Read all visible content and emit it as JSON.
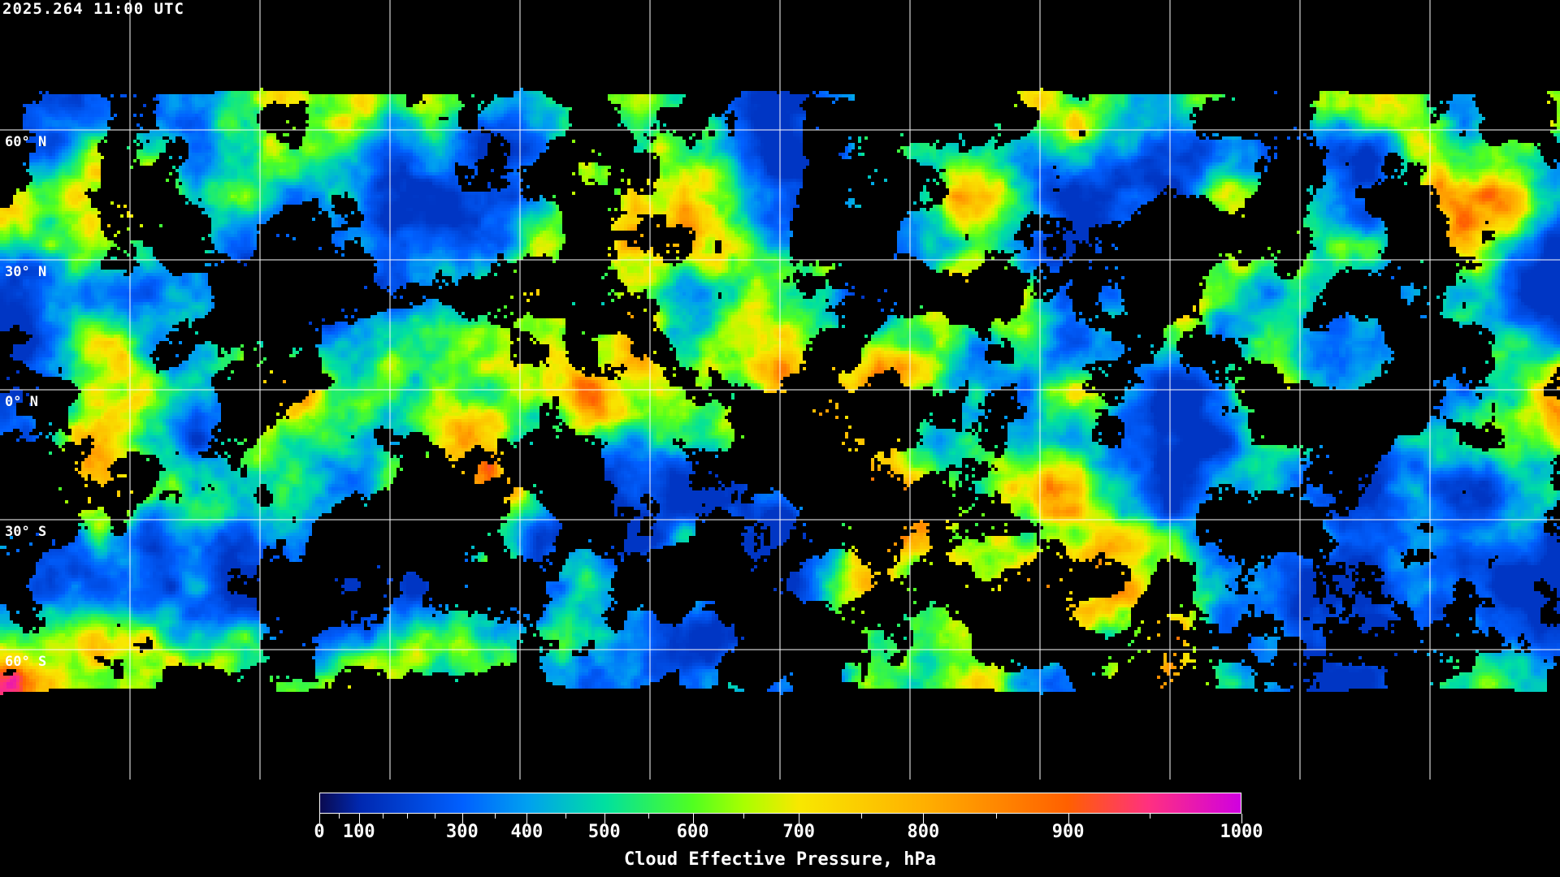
{
  "header": {
    "timestamp": "2025.264 11:00 UTC"
  },
  "map": {
    "projection": "equirectangular",
    "longitude_grid_deg": 30,
    "latitude_grid_deg": 30,
    "lat_labels": [
      "60° N",
      "30° N",
      "0° N",
      "30° S",
      "60° S"
    ],
    "no_data_color": "#000000",
    "coastline_color": "#ffffff",
    "gridline_color": "#ffffff"
  },
  "colorbar": {
    "title": "Cloud Effective Pressure, hPa",
    "tick_labels": [
      "0",
      "100",
      "300",
      "400",
      "500",
      "600",
      "700",
      "800",
      "900",
      "1000"
    ],
    "range": [
      0,
      1000
    ],
    "colors": [
      {
        "value": 0,
        "color": "#0a0a50"
      },
      {
        "value": 100,
        "color": "#0028b0"
      },
      {
        "value": 300,
        "color": "#0060ff"
      },
      {
        "value": 400,
        "color": "#00a0f0"
      },
      {
        "value": 500,
        "color": "#00e0a0"
      },
      {
        "value": 600,
        "color": "#50ff20"
      },
      {
        "value": 650,
        "color": "#a8ff00"
      },
      {
        "value": 700,
        "color": "#f8e800"
      },
      {
        "value": 800,
        "color": "#ffb000"
      },
      {
        "value": 900,
        "color": "#ff6000"
      },
      {
        "value": 950,
        "color": "#ff3080"
      },
      {
        "value": 1000,
        "color": "#d000e0"
      }
    ]
  }
}
